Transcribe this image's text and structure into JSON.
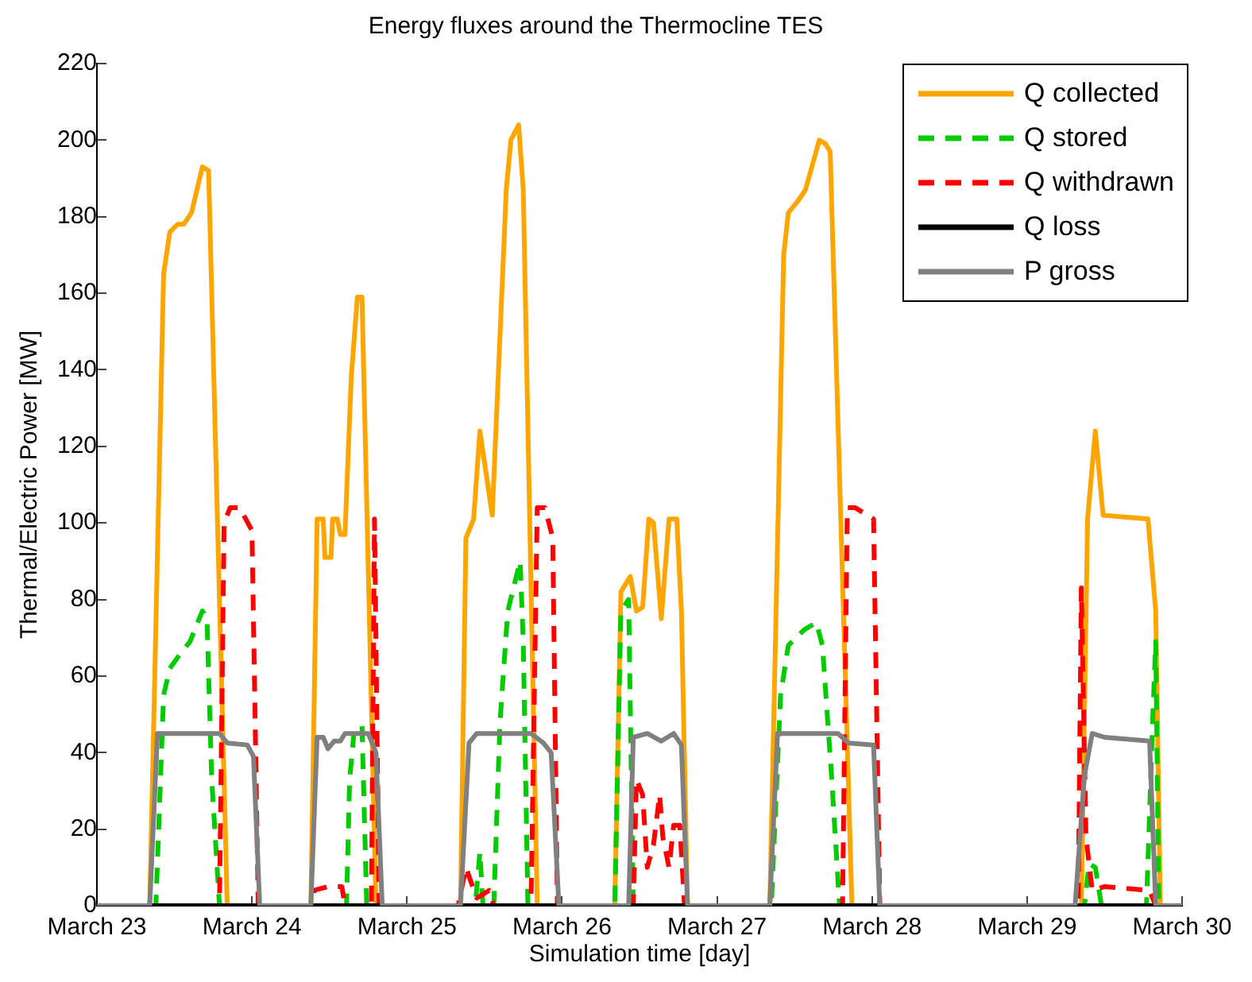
{
  "chart_data": {
    "type": "line",
    "title": "Energy fluxes around the Thermocline TES",
    "xlabel": "Simulation time [day]",
    "ylabel": "Thermal/Electric Power [MW]",
    "xlim": [
      "--03-23",
      "--03-30"
    ],
    "xticks": [
      {
        "value": "--03-23",
        "label": "March 23"
      },
      {
        "value": "--03-24",
        "label": "March 24"
      },
      {
        "value": "--03-25",
        "label": "March 25"
      },
      {
        "value": "--03-26",
        "label": "March 26"
      },
      {
        "value": "--03-27",
        "label": "March 27"
      },
      {
        "value": "--03-28",
        "label": "March 28"
      },
      {
        "value": "--03-29",
        "label": "March 29"
      },
      {
        "value": "--03-30",
        "label": "March 30"
      }
    ],
    "ylim": [
      0,
      220
    ],
    "yticks": [
      0,
      20,
      40,
      60,
      80,
      100,
      120,
      140,
      160,
      180,
      200,
      220
    ],
    "grid": false,
    "legend": "top right",
    "marker": "none",
    "series": [
      {
        "name": "Q collected",
        "color": "#ffa500",
        "line_style": "solid",
        "x": [
          "--03-23T00:00",
          "--03-23T08:10",
          "--03-23T10:19",
          "--03-23T11:17",
          "--03-23T12:29",
          "--03-23T13:26",
          "--03-23T14:38",
          "--03-23T16:19",
          "--03-23T17:17",
          "--03-23T20:10",
          "--03-24T09:07",
          "--03-24T10:05",
          "--03-24T11:02",
          "--03-24T11:17",
          "--03-24T12:14",
          "--03-24T12:29",
          "--03-24T13:12",
          "--03-24T13:41",
          "--03-24T14:24",
          "--03-24T15:22",
          "--03-24T16:19",
          "--03-24T17:02",
          "--03-24T19:12",
          "--03-25T08:17",
          "--03-25T09:07",
          "--03-25T10:19",
          "--03-25T11:17",
          "--03-25T13:12",
          "--03-25T15:22",
          "--03-25T16:05",
          "--03-25T17:17",
          "--03-25T18:00",
          "--03-25T20:10",
          "--03-26T08:10",
          "--03-26T09:07",
          "--03-26T10:34",
          "--03-26T11:31",
          "--03-26T12:29",
          "--03-26T13:26",
          "--03-26T14:10",
          "--03-26T15:22",
          "--03-26T16:34",
          "--03-26T17:46",
          "--03-26T18:29",
          "--03-26T19:26",
          "--03-27T08:10",
          "--03-27T10:19",
          "--03-27T11:02",
          "--03-27T12:29",
          "--03-27T13:41",
          "--03-27T15:50",
          "--03-27T16:48",
          "--03-27T17:31",
          "--03-27T20:53",
          "--03-29T08:24",
          "--03-29T09:22",
          "--03-29T10:34",
          "--03-29T11:46",
          "--03-29T18:43",
          "--03-29T19:55",
          "--03-29T20:38",
          "--03-30T00:00"
        ],
        "values": [
          0,
          0,
          165,
          176,
          178,
          178,
          181,
          193,
          192,
          0,
          0,
          101,
          101,
          91,
          91,
          101,
          101,
          97,
          97,
          138,
          159,
          159,
          0,
          0,
          96,
          101,
          124,
          102,
          187,
          200,
          204,
          187,
          0,
          0,
          82,
          86,
          77,
          78,
          101,
          100,
          75,
          101,
          101,
          77,
          0,
          0,
          170,
          181,
          184,
          187,
          200,
          199,
          197,
          0,
          0,
          101,
          124,
          102,
          101,
          77,
          0,
          0
        ]
      },
      {
        "name": "Q stored",
        "color": "#00cc00",
        "line_style": "dashed",
        "x": [
          "--03-23T00:00",
          "--03-23T09:07",
          "--03-23T10:19",
          "--03-23T11:17",
          "--03-23T12:58",
          "--03-23T14:24",
          "--03-23T16:19",
          "--03-23T17:02",
          "--03-23T17:46",
          "--03-23T18:58",
          "--03-24T14:38",
          "--03-24T15:07",
          "--03-24T15:50",
          "--03-24T17:02",
          "--03-24T17:46",
          "--03-25T10:34",
          "--03-25T11:17",
          "--03-25T11:46",
          "--03-25T13:26",
          "--03-25T14:24",
          "--03-25T15:36",
          "--03-25T17:31",
          "--03-25T18:00",
          "--03-25T18:43",
          "--03-26T08:10",
          "--03-26T09:07",
          "--03-26T10:19",
          "--03-26T11:02",
          "--03-27T08:24",
          "--03-27T09:50",
          "--03-27T11:02",
          "--03-27T13:26",
          "--03-27T15:22",
          "--03-27T16:19",
          "--03-27T17:46",
          "--03-27T18:58",
          "--03-29T08:53",
          "--03-29T09:36",
          "--03-29T10:34",
          "--03-29T11:31",
          "--03-29T18:29",
          "--03-29T19:26",
          "--03-29T19:55",
          "--03-29T20:24",
          "--03-30T00:00"
        ],
        "values": [
          0,
          0,
          55,
          62,
          66,
          69,
          77,
          75,
          33,
          0,
          0,
          33,
          46,
          47,
          0,
          0,
          14,
          0,
          0,
          48,
          77,
          90,
          69,
          0,
          0,
          77,
          80,
          0,
          0,
          55,
          68,
          72,
          74,
          68,
          33,
          0,
          0,
          11,
          10,
          0,
          0,
          48,
          69,
          0,
          0
        ]
      },
      {
        "name": "Q withdrawn",
        "color": "#ff0000",
        "line_style": "dashed",
        "x": [
          "--03-23T00:00",
          "--03-23T18:58",
          "--03-23T19:41",
          "--03-23T20:38",
          "--03-23T22:05",
          "--03-24T00:00",
          "--03-24T00:58",
          "--03-24T09:22",
          "--03-24T09:36",
          "--03-24T11:46",
          "--03-24T13:55",
          "--03-24T14:24",
          "--03-24T18:29",
          "--03-24T18:58",
          "--03-24T19:41",
          "--03-25T07:55",
          "--03-25T09:07",
          "--03-25T10:48",
          "--03-25T12:43",
          "--03-25T13:26",
          "--03-25T19:12",
          "--03-25T20:10",
          "--03-25T21:22",
          "--03-25T22:34",
          "--03-25T23:17",
          "--03-26T11:02",
          "--03-26T11:31",
          "--03-26T12:29",
          "--03-26T13:12",
          "--03-26T14:10",
          "--03-26T15:07",
          "--03-26T15:36",
          "--03-26T16:34",
          "--03-26T17:17",
          "--03-26T18:14",
          "--03-26T18:58",
          "--03-27T19:26",
          "--03-27T20:10",
          "--03-27T21:22",
          "--03-28T00:14",
          "--03-28T01:12",
          "--03-29T07:55",
          "--03-29T08:24",
          "--03-29T09:07",
          "--03-29T10:05",
          "--03-29T12:00",
          "--03-29T18:58",
          "--03-29T19:55",
          "--03-30T00:00"
        ],
        "values": [
          0,
          0,
          100,
          104,
          104,
          98,
          0,
          0,
          4,
          5,
          5,
          0,
          0,
          101,
          0,
          0,
          10,
          2,
          4,
          0,
          0,
          104,
          104,
          96,
          0,
          0,
          33,
          29,
          10,
          16,
          29,
          18,
          10,
          21,
          21,
          0,
          0,
          104,
          104,
          101,
          0,
          0,
          83,
          18,
          4,
          5,
          4,
          0,
          0
        ]
      },
      {
        "name": "Q loss",
        "color": "#000000",
        "line_style": "solid",
        "x": [
          "--03-23T00:00",
          "--03-30T00:00"
        ],
        "values": [
          0,
          0
        ]
      },
      {
        "name": "P gross",
        "color": "#808080",
        "line_style": "solid",
        "x": [
          "--03-23T00:00",
          "--03-23T08:10",
          "--03-23T09:22",
          "--03-23T18:58",
          "--03-23T20:10",
          "--03-23T23:17",
          "--03-24T00:14",
          "--03-24T01:12",
          "--03-24T09:07",
          "--03-24T10:05",
          "--03-24T11:02",
          "--03-24T11:46",
          "--03-24T12:43",
          "--03-24T13:41",
          "--03-24T14:24",
          "--03-24T18:00",
          "--03-24T19:12",
          "--03-24T20:10",
          "--03-25T08:17",
          "--03-25T09:36",
          "--03-25T10:48",
          "--03-25T19:12",
          "--03-25T21:07",
          "--03-25T22:19",
          "--03-25T23:31",
          "--03-26T10:19",
          "--03-26T11:02",
          "--03-26T13:12",
          "--03-26T15:22",
          "--03-26T17:17",
          "--03-26T18:29",
          "--03-26T19:26",
          "--03-27T08:10",
          "--03-27T09:22",
          "--03-27T18:43",
          "--03-27T20:24",
          "--03-28T00:14",
          "--03-28T01:12",
          "--03-29T07:26",
          "--03-29T08:53",
          "--03-29T10:05",
          "--03-29T12:00",
          "--03-29T18:58",
          "--03-29T19:55",
          "--03-30T00:00"
        ],
        "values": [
          0,
          0,
          45,
          45,
          42.5,
          42,
          39,
          0,
          0,
          44,
          44,
          41,
          43,
          43,
          45,
          45,
          40,
          0,
          0,
          42.5,
          45,
          45,
          42.5,
          40,
          0,
          0,
          44,
          45,
          43,
          45,
          42,
          0,
          0,
          45,
          45,
          42.5,
          42,
          0,
          0,
          34,
          45,
          44,
          43,
          0,
          0
        ]
      }
    ]
  }
}
